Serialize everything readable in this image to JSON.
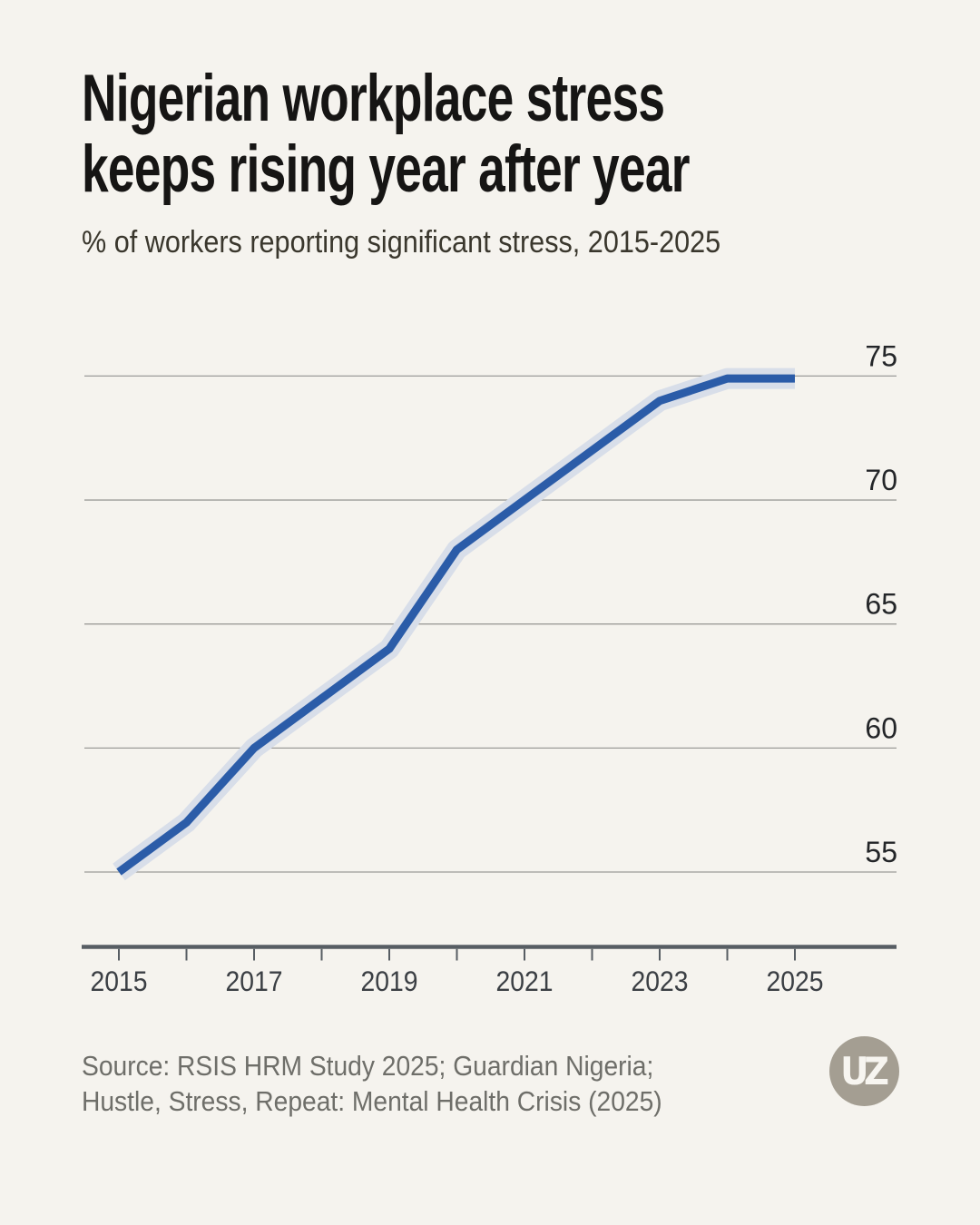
{
  "header": {
    "title_line1": "Nigerian workplace stress",
    "title_line2": "keeps rising year after year",
    "subtitle": "% of workers reporting significant stress, 2015-2025"
  },
  "chart_data": {
    "type": "line",
    "title": "Nigerian workplace stress keeps rising year after year",
    "subtitle": "% of workers reporting significant stress, 2015-2025",
    "x": [
      2015,
      2016,
      2017,
      2018,
      2019,
      2020,
      2021,
      2022,
      2023,
      2024,
      2025
    ],
    "series": [
      {
        "name": "% of workers reporting significant stress",
        "values": [
          55,
          57,
          60,
          62,
          64,
          68,
          70,
          72,
          74,
          74.9,
          74.9
        ]
      }
    ],
    "ylim": [
      53,
      77
    ],
    "yticks": [
      55,
      60,
      65,
      70,
      75
    ],
    "xtick_labels": [
      "2015",
      "2017",
      "2019",
      "2021",
      "2023",
      "2025"
    ],
    "xlabel": "",
    "ylabel": "",
    "grid": "horizontal",
    "legend": "none",
    "line_color": "#2b5ca8",
    "halo_color": "#d8dee9"
  },
  "footer": {
    "source_line1": "Source: RSIS HRM Study 2025; Guardian Nigeria;",
    "source_line2": "Hustle, Stress, Repeat: Mental Health Crisis (2025)",
    "logo_monogram": "UZ"
  }
}
